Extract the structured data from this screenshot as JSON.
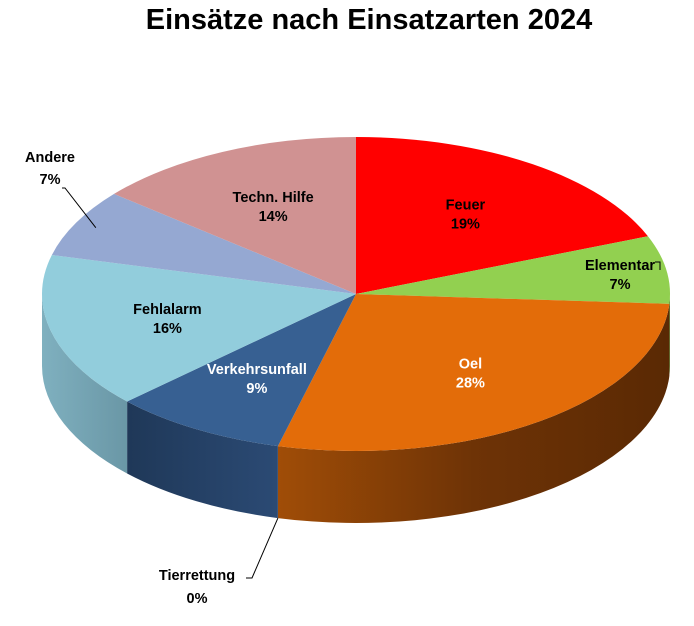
{
  "chart_data": {
    "type": "pie",
    "title": "Einsätze nach Einsatzarten 2024",
    "slices": [
      {
        "name": "Feuer",
        "value": 19,
        "label": "19%",
        "color": "#ff0000",
        "side_color": "#8a0000",
        "label_color": "#000000"
      },
      {
        "name": "Elementar",
        "value": 7,
        "label": "7%",
        "color": "#92d050",
        "side_color": "#4f7a27",
        "label_color": "#000000"
      },
      {
        "name": "Oel",
        "value": 28,
        "label": "28%",
        "color": "#e36c09",
        "side_color": "#6e3306",
        "label_color": "#ffffff"
      },
      {
        "name": "Tierrettung",
        "value": 0,
        "label": "0%",
        "color": "#7f7f7f",
        "side_color": "#404040",
        "label_color": "#000000"
      },
      {
        "name": "Verkehrsunfall",
        "value": 9,
        "label": "9%",
        "color": "#376092",
        "side_color": "#243f62",
        "label_color": "#ffffff"
      },
      {
        "name": "Fehlalarm",
        "value": 16,
        "label": "16%",
        "color": "#92cddc",
        "side_color": "#6fa0b0",
        "label_color": "#000000"
      },
      {
        "name": "Andere",
        "value": 7,
        "label": "7%",
        "color": "#95a8d2",
        "side_color": "#5e6f96",
        "label_color": "#000000"
      },
      {
        "name": "Techn. Hilfe",
        "value": 14,
        "label": "14%",
        "color": "#d09292",
        "side_color": "#8f5a5a",
        "label_color": "#000000"
      }
    ],
    "legend": "none",
    "style": "3d-exploded-none"
  }
}
